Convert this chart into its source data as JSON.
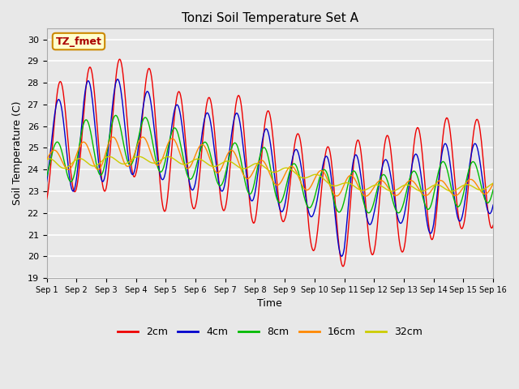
{
  "title": "Tonzi Soil Temperature Set A",
  "xlabel": "Time",
  "ylabel": "Soil Temperature (C)",
  "ylim": [
    19.0,
    30.5
  ],
  "yticks": [
    19.0,
    20.0,
    21.0,
    22.0,
    23.0,
    24.0,
    25.0,
    26.0,
    27.0,
    28.0,
    29.0,
    30.0
  ],
  "xtick_labels": [
    "Sep 1",
    "Sep 2",
    "Sep 3",
    "Sep 4",
    "Sep 5",
    "Sep 6",
    "Sep 7",
    "Sep 8",
    "Sep 9",
    "Sep 10",
    "Sep 11",
    "Sep 12",
    "Sep 13",
    "Sep 14",
    "Sep 15",
    "Sep 16"
  ],
  "annotation_text": "TZ_fmet",
  "annotation_color": "#aa0000",
  "annotation_bg": "#ffffcc",
  "annotation_border": "#cc8800",
  "colors": {
    "2cm": "#ee0000",
    "4cm": "#0000cc",
    "8cm": "#00bb00",
    "16cm": "#ff8800",
    "32cm": "#cccc00"
  },
  "background_color": "#e8e8e8",
  "grid_color": "#ffffff"
}
